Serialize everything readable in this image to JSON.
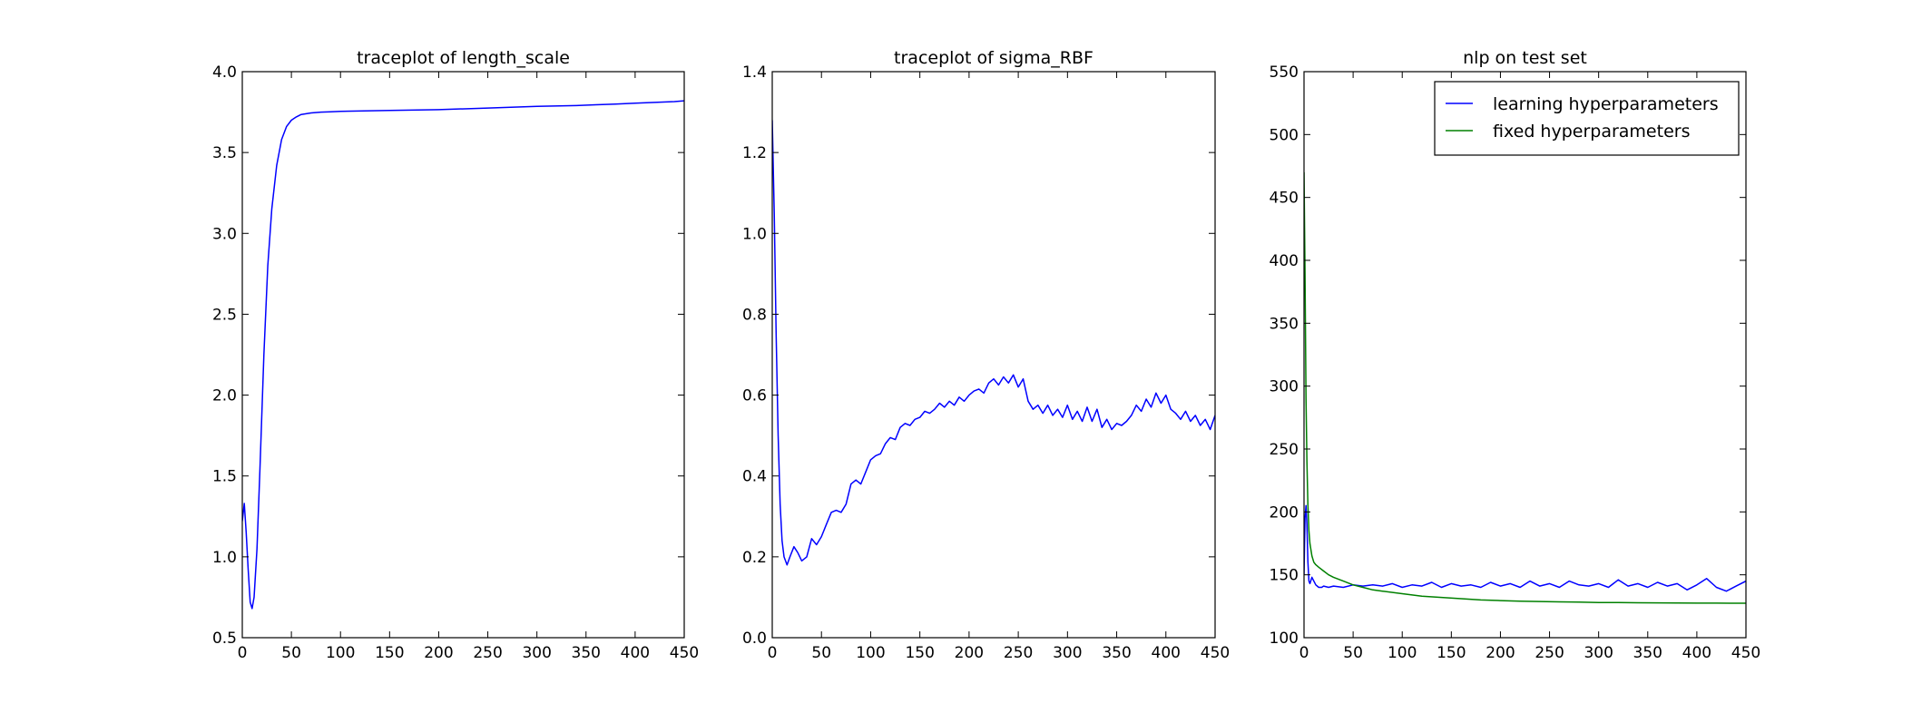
{
  "chart_data": [
    {
      "type": "line",
      "title": "traceplot of length_scale",
      "xlabel": "",
      "ylabel": "",
      "xlim": [
        0,
        450
      ],
      "ylim": [
        0.5,
        4.0
      ],
      "xticks": [
        0,
        50,
        100,
        150,
        200,
        250,
        300,
        350,
        400,
        450
      ],
      "yticks": [
        0.5,
        1.0,
        1.5,
        2.0,
        2.5,
        3.0,
        3.5,
        4.0
      ],
      "xtick_labels": [
        "0",
        "50",
        "100",
        "150",
        "200",
        "250",
        "300",
        "350",
        "400",
        "450"
      ],
      "ytick_labels": [
        "0.5",
        "1.0",
        "1.5",
        "2.0",
        "2.5",
        "3.0",
        "3.5",
        "4.0"
      ],
      "grid": false,
      "series": [
        {
          "color": "#0000ff",
          "x": [
            0,
            2,
            4,
            6,
            8,
            10,
            12,
            15,
            18,
            22,
            26,
            30,
            35,
            40,
            45,
            50,
            55,
            60,
            65,
            70,
            80,
            90,
            100,
            150,
            200,
            250,
            300,
            340,
            360,
            380,
            400,
            420,
            440,
            450
          ],
          "y": [
            1.22,
            1.33,
            1.15,
            0.92,
            0.72,
            0.68,
            0.75,
            1.05,
            1.55,
            2.25,
            2.8,
            3.15,
            3.42,
            3.58,
            3.66,
            3.7,
            3.72,
            3.735,
            3.74,
            3.745,
            3.75,
            3.752,
            3.755,
            3.76,
            3.765,
            3.775,
            3.785,
            3.79,
            3.795,
            3.8,
            3.805,
            3.81,
            3.815,
            3.82
          ]
        }
      ]
    },
    {
      "type": "line",
      "title": "traceplot of sigma_RBF",
      "xlabel": "",
      "ylabel": "",
      "xlim": [
        0,
        450
      ],
      "ylim": [
        0.0,
        1.4
      ],
      "xticks": [
        0,
        50,
        100,
        150,
        200,
        250,
        300,
        350,
        400,
        450
      ],
      "yticks": [
        0.0,
        0.2,
        0.4,
        0.6,
        0.8,
        1.0,
        1.2,
        1.4
      ],
      "xtick_labels": [
        "0",
        "50",
        "100",
        "150",
        "200",
        "250",
        "300",
        "350",
        "400",
        "450"
      ],
      "ytick_labels": [
        "0.0",
        "0.2",
        "0.4",
        "0.6",
        "0.8",
        "1.0",
        "1.2",
        "1.4"
      ],
      "grid": false,
      "series": [
        {
          "color": "#0000ff",
          "x": [
            0,
            2,
            4,
            6,
            8,
            10,
            12,
            15,
            18,
            22,
            26,
            30,
            35,
            40,
            45,
            50,
            55,
            60,
            65,
            70,
            75,
            80,
            85,
            90,
            95,
            100,
            105,
            110,
            115,
            120,
            125,
            130,
            135,
            140,
            145,
            150,
            155,
            160,
            165,
            170,
            175,
            180,
            185,
            190,
            195,
            200,
            205,
            210,
            215,
            220,
            225,
            230,
            235,
            240,
            245,
            250,
            255,
            260,
            265,
            270,
            275,
            280,
            285,
            290,
            295,
            300,
            305,
            310,
            315,
            320,
            325,
            330,
            335,
            340,
            345,
            350,
            355,
            360,
            365,
            370,
            375,
            380,
            385,
            390,
            395,
            400,
            405,
            410,
            415,
            420,
            425,
            430,
            435,
            440,
            445,
            450
          ],
          "y": [
            1.28,
            1.05,
            0.75,
            0.5,
            0.33,
            0.24,
            0.2,
            0.18,
            0.2,
            0.225,
            0.21,
            0.19,
            0.2,
            0.245,
            0.23,
            0.25,
            0.28,
            0.31,
            0.315,
            0.31,
            0.33,
            0.38,
            0.39,
            0.38,
            0.41,
            0.44,
            0.45,
            0.455,
            0.48,
            0.495,
            0.49,
            0.52,
            0.53,
            0.525,
            0.54,
            0.545,
            0.56,
            0.555,
            0.565,
            0.58,
            0.57,
            0.585,
            0.575,
            0.595,
            0.585,
            0.6,
            0.61,
            0.615,
            0.605,
            0.63,
            0.64,
            0.625,
            0.645,
            0.63,
            0.65,
            0.62,
            0.64,
            0.585,
            0.565,
            0.575,
            0.555,
            0.575,
            0.55,
            0.565,
            0.545,
            0.575,
            0.54,
            0.56,
            0.535,
            0.57,
            0.535,
            0.565,
            0.52,
            0.54,
            0.515,
            0.53,
            0.525,
            0.535,
            0.55,
            0.575,
            0.56,
            0.59,
            0.57,
            0.605,
            0.58,
            0.6,
            0.565,
            0.555,
            0.54,
            0.56,
            0.535,
            0.55,
            0.525,
            0.54,
            0.515,
            0.55
          ]
        }
      ]
    },
    {
      "type": "line",
      "title": "nlp on test set",
      "xlabel": "",
      "ylabel": "",
      "xlim": [
        0,
        450
      ],
      "ylim": [
        100,
        550
      ],
      "xticks": [
        0,
        50,
        100,
        150,
        200,
        250,
        300,
        350,
        400,
        450
      ],
      "yticks": [
        100,
        150,
        200,
        250,
        300,
        350,
        400,
        450,
        500,
        550
      ],
      "xtick_labels": [
        "0",
        "50",
        "100",
        "150",
        "200",
        "250",
        "300",
        "350",
        "400",
        "450"
      ],
      "ytick_labels": [
        "100",
        "150",
        "200",
        "250",
        "300",
        "350",
        "400",
        "450",
        "500",
        "550"
      ],
      "grid": false,
      "legend_position": "top-right",
      "series": [
        {
          "name": "learning hyperparameters",
          "color": "#0000ff",
          "x": [
            0,
            1,
            2,
            3,
            4,
            5,
            6,
            8,
            10,
            12,
            15,
            18,
            20,
            25,
            30,
            40,
            50,
            60,
            70,
            80,
            90,
            100,
            110,
            120,
            130,
            140,
            150,
            160,
            170,
            180,
            190,
            200,
            210,
            220,
            230,
            240,
            250,
            260,
            270,
            280,
            290,
            300,
            310,
            320,
            330,
            340,
            350,
            360,
            370,
            380,
            390,
            400,
            410,
            420,
            430,
            440,
            450
          ],
          "y": [
            150,
            195,
            205,
            190,
            160,
            145,
            143,
            148,
            145,
            142,
            140,
            140,
            141,
            140,
            141,
            140,
            142,
            141,
            142,
            141,
            143,
            140,
            142,
            141,
            144,
            140,
            143,
            141,
            142,
            140,
            144,
            141,
            143,
            140,
            145,
            141,
            143,
            140,
            145,
            142,
            141,
            143,
            140,
            146,
            141,
            143,
            140,
            144,
            141,
            143,
            138,
            142,
            147,
            140,
            137,
            141,
            145
          ]
        },
        {
          "name": "fixed hyperparameters",
          "color": "#008000",
          "x": [
            0,
            1,
            2,
            3,
            4,
            5,
            6,
            8,
            10,
            12,
            15,
            20,
            25,
            30,
            40,
            50,
            60,
            70,
            80,
            100,
            120,
            140,
            160,
            180,
            200,
            220,
            240,
            260,
            280,
            300,
            320,
            340,
            360,
            380,
            400,
            420,
            440,
            450
          ],
          "y": [
            470,
            390,
            290,
            240,
            205,
            185,
            175,
            165,
            160,
            158,
            156,
            153,
            150,
            148,
            145,
            142,
            140,
            138,
            137,
            135,
            133,
            132,
            131,
            130,
            129.5,
            129,
            128.8,
            128.5,
            128.3,
            128,
            127.9,
            127.8,
            127.7,
            127.6,
            127.5,
            127.5,
            127.4,
            127.4
          ]
        }
      ]
    }
  ]
}
